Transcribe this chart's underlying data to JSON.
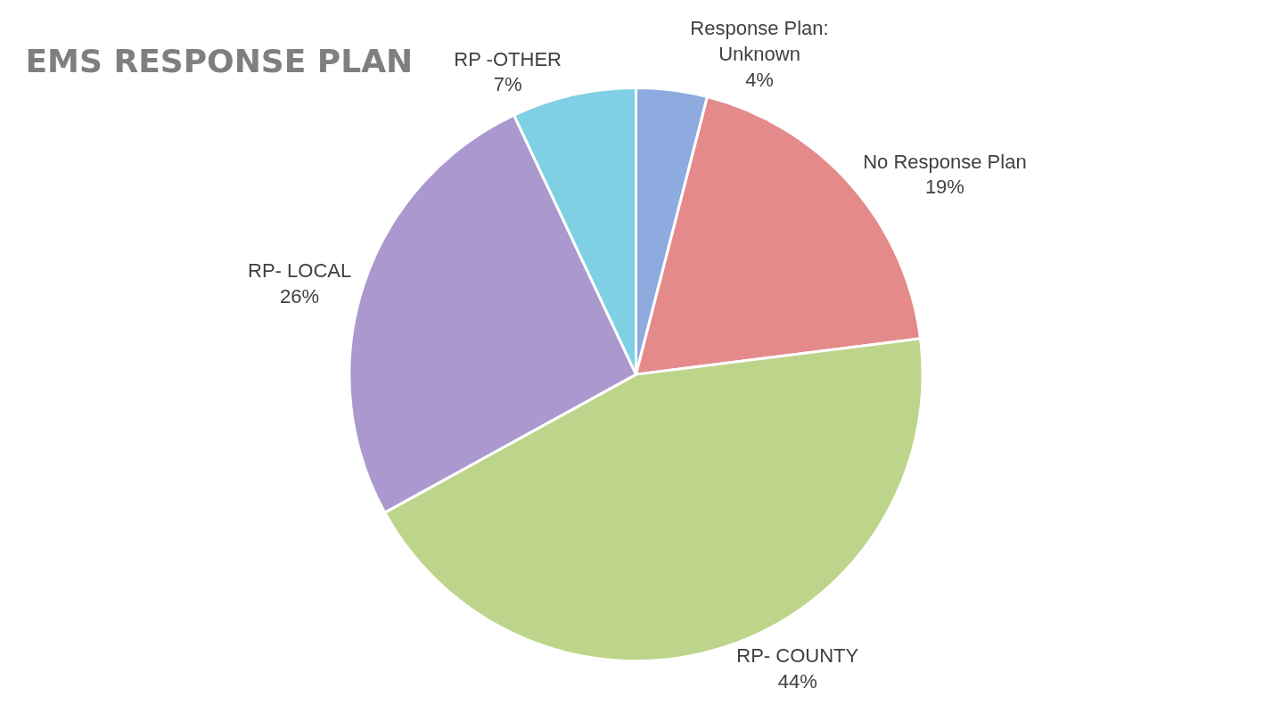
{
  "chart_data": {
    "type": "pie",
    "title": "EMS RESPONSE PLAN",
    "categories": [
      "Response Plan: Unknown",
      "No Response Plan",
      "RP- COUNTY",
      "RP- LOCAL",
      "RP -OTHER"
    ],
    "values": [
      4,
      19,
      44,
      26,
      7
    ],
    "value_labels": [
      "4%",
      "19%",
      "44%",
      "26%",
      "7%"
    ],
    "colors": [
      "#8eabdf",
      "#e58a8a",
      "#bcd58a",
      "#ab98cf",
      "#7fd0e4"
    ],
    "legend": false
  }
}
